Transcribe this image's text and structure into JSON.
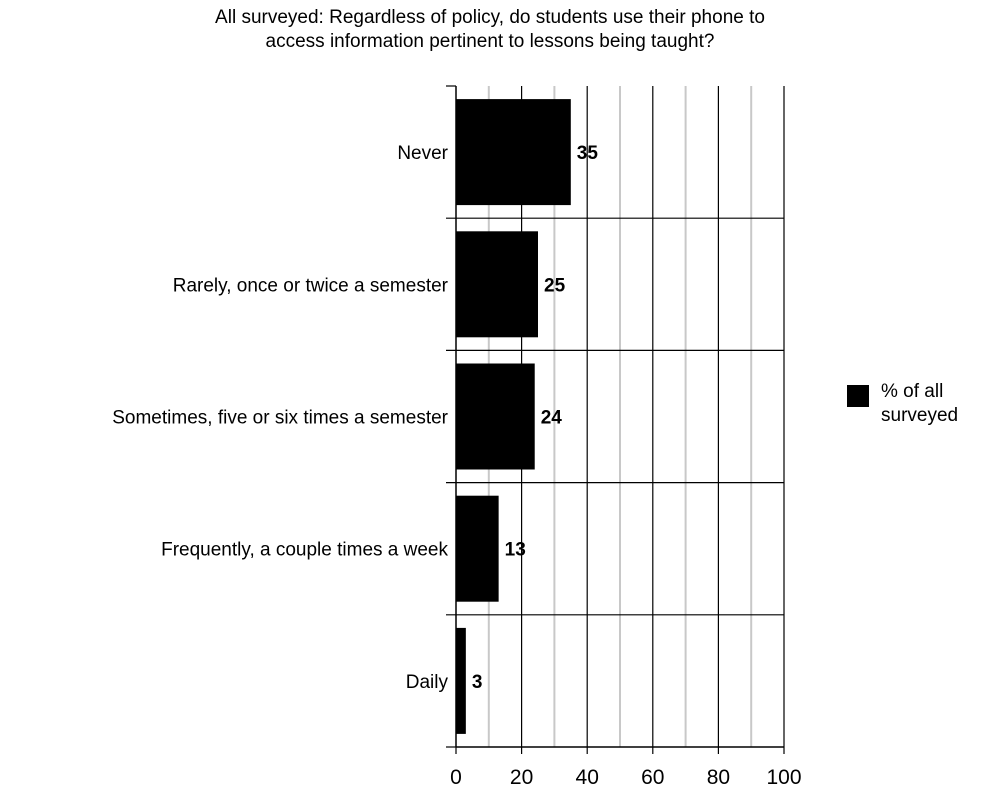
{
  "chart_data": {
    "type": "bar",
    "orientation": "horizontal",
    "title_lines": [
      "All surveyed: Regardless of policy, do students use their phone to",
      "access information pertinent to lessons being taught?"
    ],
    "categories": [
      "Never",
      "Rarely, once or twice a semester",
      "Sometimes, five or six times a semester",
      "Frequently, a couple times a week",
      "Daily"
    ],
    "series": [
      {
        "name": "% of all surveyed",
        "values": [
          35,
          25,
          24,
          13,
          3
        ],
        "color": "#000000"
      }
    ],
    "data_labels": [
      "35",
      "25",
      "24",
      "13",
      "3"
    ],
    "xlim": [
      0,
      100
    ],
    "x_ticks": [
      0,
      20,
      40,
      60,
      80,
      100
    ],
    "x_tick_labels": [
      "0",
      "20",
      "40",
      "60",
      "80",
      "100"
    ],
    "minor_gridlines": [
      10,
      30,
      50,
      70,
      90
    ],
    "grid": true,
    "legend_position": "right",
    "legend_label_lines": [
      "% of all",
      "surveyed"
    ]
  }
}
